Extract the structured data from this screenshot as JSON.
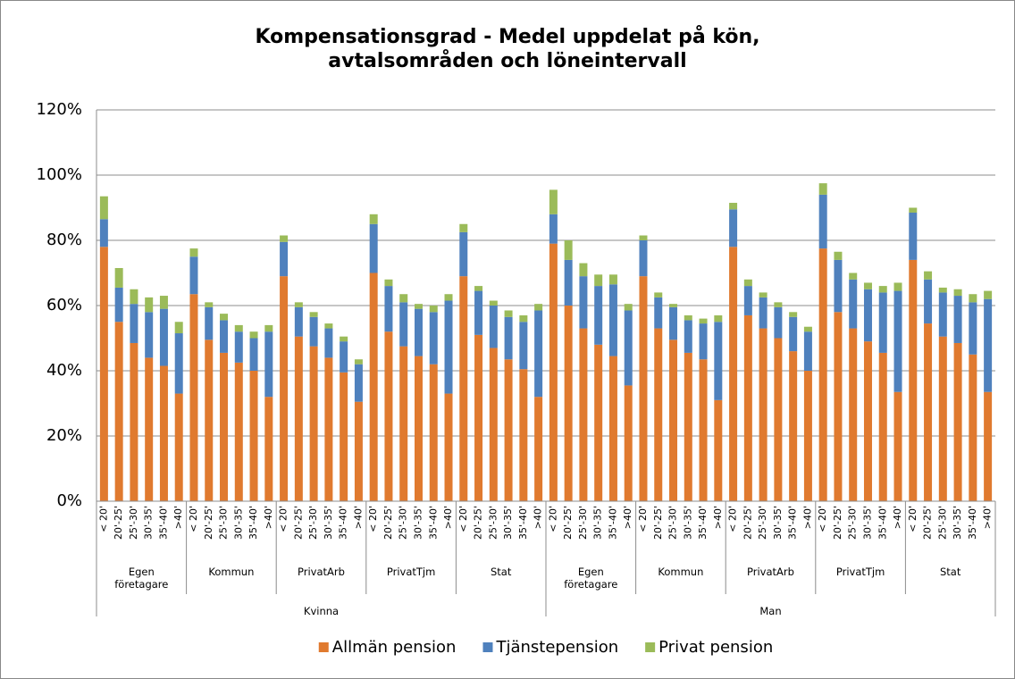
{
  "chart_data": {
    "type": "stacked_bar",
    "title": "Kompensationsgrad - Medel uppdelat på kön, avtalsområden och löneintervall",
    "categories": [
      "< 20'",
      "20'-25'",
      "25'-30'",
      "30'-35'",
      "35'-40'",
      ">40'",
      "< 20'",
      "20'-25'",
      "25'-30'",
      "30'-35'",
      "35'-40'",
      ">40'",
      "< 20'",
      "20'-25'",
      "25'-30'",
      "30'-35'",
      "35'-40'",
      ">40'",
      "< 20'",
      "20'-25'",
      "25'-30'",
      "30'-35'",
      "35'-40'",
      ">40'",
      "< 20'",
      "20'-25'",
      "25'-30'",
      "30'-35'",
      "35'-40'",
      ">40'",
      "< 20'",
      "20'-25'",
      "25'-30'",
      "30'-35'",
      "35'-40'",
      ">40'",
      "< 20'",
      "20'-25'",
      "25'-30'",
      "30'-35'",
      "35'-40'",
      ">40'",
      "< 20'",
      "20'-25'",
      "25'-30'",
      "30'-35'",
      "35'-40'",
      ">40'",
      "< 20'",
      "20'-25'",
      "25'-30'",
      "30'-35'",
      "35'-40'",
      ">40'",
      "< 20'",
      "20'-25'",
      "25'-30'",
      "30'-35'",
      "35'-40'",
      ">40'"
    ],
    "groups": [
      "Egen företagare",
      "Kommun",
      "PrivatArb",
      "PrivatTjm",
      "Stat",
      "Egen företagare",
      "Kommun",
      "PrivatArb",
      "PrivatTjm",
      "Stat"
    ],
    "supergroups": [
      "Kvinna",
      "Man"
    ],
    "series": [
      {
        "name": "Allmän pension",
        "color": "#e07a2f",
        "values": [
          78,
          55,
          48.5,
          44,
          41.5,
          33,
          63.5,
          49.5,
          45.5,
          42.5,
          40,
          32,
          69,
          50.5,
          47.5,
          44,
          39.5,
          30.5,
          70,
          52,
          47.5,
          44.5,
          42,
          33,
          69,
          51,
          47,
          43.5,
          40.5,
          32,
          79,
          60,
          53,
          48,
          44.5,
          35.5,
          69,
          53,
          49.5,
          45.5,
          43.5,
          31,
          78,
          57,
          53,
          50,
          46,
          40,
          77.5,
          58,
          53,
          49,
          45.5,
          33.5,
          74,
          54.5,
          50.5,
          48.5,
          45,
          33.5
        ]
      },
      {
        "name": "Tjänstepension",
        "color": "#4f81bd",
        "values": [
          8.5,
          10.5,
          12,
          14,
          17.5,
          18.5,
          11.5,
          10,
          10,
          9.5,
          10,
          20,
          10.5,
          9,
          9,
          9,
          9.5,
          11.5,
          15,
          14,
          13.5,
          14.5,
          16,
          28.5,
          13.5,
          13.5,
          13,
          13,
          14.5,
          26.5,
          9,
          14,
          16,
          18,
          22,
          23,
          11,
          9.5,
          10,
          10,
          11,
          24,
          11.5,
          9,
          9.5,
          9.5,
          10.5,
          12,
          16.5,
          16,
          15,
          16,
          18.5,
          31,
          14.5,
          13.5,
          13.5,
          14.5,
          16,
          28.5
        ]
      },
      {
        "name": "Privat pension",
        "color": "#9bbb59",
        "values": [
          7,
          6,
          4.5,
          4.5,
          4,
          3.5,
          2.5,
          1.5,
          2,
          2,
          2,
          2,
          2,
          1.5,
          1.5,
          1.5,
          1.5,
          1.5,
          3,
          2,
          2.5,
          1.5,
          2,
          2,
          2.5,
          1.5,
          1.5,
          2,
          2,
          2,
          7.5,
          6,
          4,
          3.5,
          3,
          2,
          1.5,
          1.5,
          1,
          1.5,
          1.5,
          2,
          2,
          2,
          1.5,
          1.5,
          1.5,
          1.5,
          3.5,
          2.5,
          2,
          2,
          2,
          2.5,
          1.5,
          2.5,
          1.5,
          2,
          2.5,
          2.5
        ]
      }
    ],
    "ylim": [
      0,
      120
    ],
    "yticks": [
      {
        "value": 0,
        "label": "0%"
      },
      {
        "value": 20,
        "label": "20%"
      },
      {
        "value": 40,
        "label": "40%"
      },
      {
        "value": 60,
        "label": "60%"
      },
      {
        "value": 80,
        "label": "80%"
      },
      {
        "value": 100,
        "label": "100%"
      },
      {
        "value": 120,
        "label": "120%"
      }
    ],
    "grid": true
  }
}
